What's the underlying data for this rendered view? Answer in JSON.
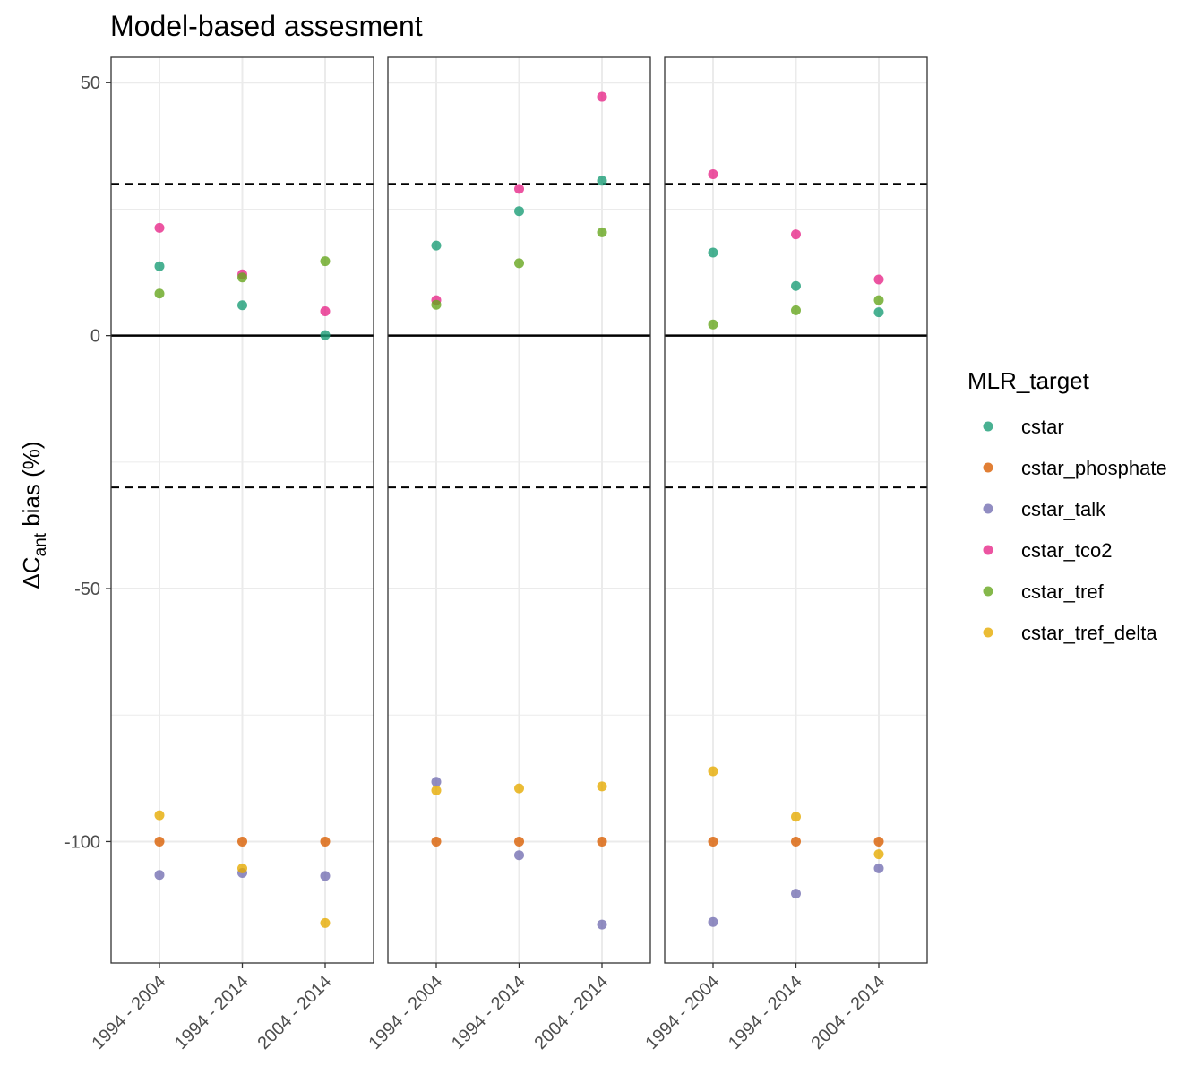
{
  "chart_data": {
    "type": "scatter",
    "title": "Model-based assesment",
    "ylabel": {
      "prefix": "ΔC",
      "subscript": "ant",
      "suffix": " bias (%)"
    },
    "xlabel": "",
    "categories": [
      "1994 - 2004",
      "1994 - 2014",
      "2004 - 2014"
    ],
    "ylim": [
      -124,
      55
    ],
    "yticks": [
      50,
      0,
      -50,
      -100
    ],
    "ytick_labels": [
      "50",
      "0",
      "-50",
      "-100"
    ],
    "hlines": [
      {
        "y": 0,
        "style": "solid"
      },
      {
        "y": 30,
        "style": "dashed"
      },
      {
        "y": -30,
        "style": "dashed"
      }
    ],
    "grid": true,
    "legend": {
      "title": "MLR_target",
      "position": "right"
    },
    "series": [
      {
        "name": "cstar",
        "color": "#1b9e77"
      },
      {
        "name": "cstar_phosphate",
        "color": "#d95f02"
      },
      {
        "name": "cstar_talk",
        "color": "#7570b3"
      },
      {
        "name": "cstar_tco2",
        "color": "#e7298a"
      },
      {
        "name": "cstar_tref",
        "color": "#66a61e"
      },
      {
        "name": "cstar_tref_delta",
        "color": "#e6ab02"
      }
    ],
    "panels": [
      {
        "values": {
          "cstar": [
            13.7,
            6,
            0.1
          ],
          "cstar_phosphate": [
            -100,
            -100,
            -100
          ],
          "cstar_talk": [
            -106.6,
            -106.2,
            -106.8
          ],
          "cstar_tco2": [
            21.3,
            12.1,
            4.8
          ],
          "cstar_tref": [
            8.3,
            11.5,
            14.7
          ],
          "cstar_tref_delta": [
            -94.8,
            -105.3,
            -116.1
          ]
        }
      },
      {
        "values": {
          "cstar": [
            17.8,
            24.6,
            30.6
          ],
          "cstar_phosphate": [
            -100,
            -100,
            -100
          ],
          "cstar_talk": [
            -88.2,
            -102.7,
            -116.4
          ],
          "cstar_tco2": [
            7,
            29,
            47.2
          ],
          "cstar_tref": [
            6.1,
            14.3,
            20.4
          ],
          "cstar_tref_delta": [
            -89.9,
            -89.5,
            -89.1
          ]
        }
      },
      {
        "values": {
          "cstar": [
            16.4,
            9.8,
            4.6
          ],
          "cstar_phosphate": [
            -100,
            -100,
            -100
          ],
          "cstar_talk": [
            -115.9,
            -110.3,
            -105.3
          ],
          "cstar_tco2": [
            31.9,
            20,
            11.1
          ],
          "cstar_tref": [
            2.2,
            5,
            7
          ],
          "cstar_tref_delta": [
            -86.1,
            -95.1,
            -102.5
          ]
        }
      }
    ]
  }
}
